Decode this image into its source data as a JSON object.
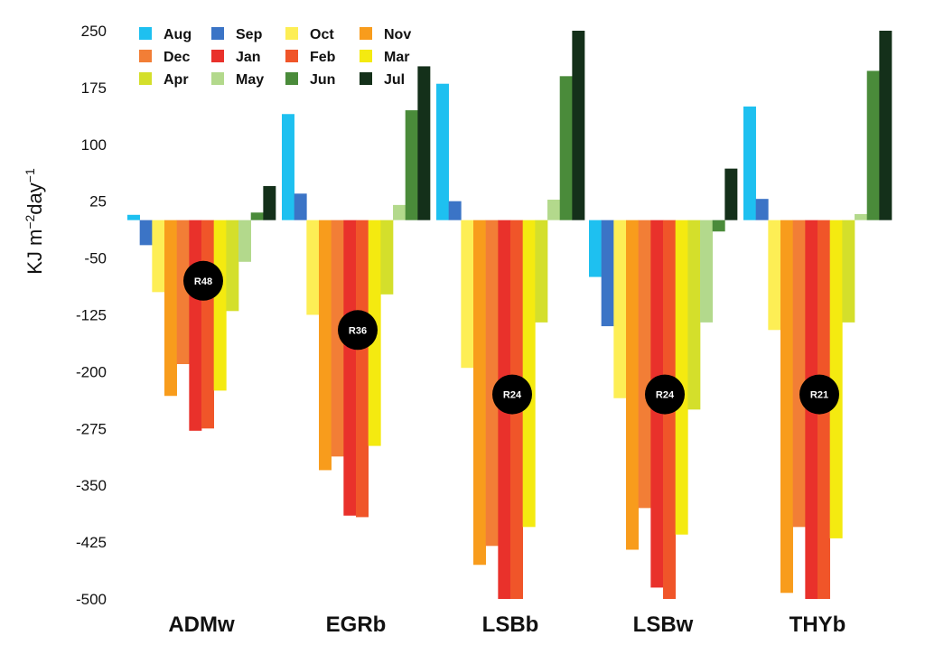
{
  "chart_data": {
    "type": "bar",
    "ylabel_parts": [
      "KJ m",
      "−2",
      "day",
      "−1"
    ],
    "ylim": [
      -500,
      250
    ],
    "yticks": [
      250,
      175,
      100,
      25,
      -50,
      -125,
      -200,
      -275,
      -350,
      -425,
      -500
    ],
    "categories": [
      "ADMw",
      "EGRb",
      "LSBb",
      "LSBw",
      "THYb"
    ],
    "series": [
      {
        "name": "Aug",
        "color": "#1ec0f0",
        "values": [
          7,
          140,
          180,
          -75,
          150
        ]
      },
      {
        "name": "Sep",
        "color": "#3b74c6",
        "values": [
          -33,
          35,
          25,
          -140,
          28
        ]
      },
      {
        "name": "Oct",
        "color": "#fdee55",
        "values": [
          -95,
          -125,
          -195,
          -235,
          -145
        ]
      },
      {
        "name": "Nov",
        "color": "#f89c1c",
        "values": [
          -232,
          -330,
          -455,
          -435,
          -492
        ]
      },
      {
        "name": "Dec",
        "color": "#f27e36",
        "values": [
          -190,
          -312,
          -430,
          -380,
          -405
        ]
      },
      {
        "name": "Jan",
        "color": "#e9312b",
        "values": [
          -278,
          -390,
          -500,
          -485,
          -500
        ]
      },
      {
        "name": "Feb",
        "color": "#f05529",
        "values": [
          -275,
          -392,
          -500,
          -500,
          -500
        ]
      },
      {
        "name": "Mar",
        "color": "#f4ea10",
        "values": [
          -225,
          -298,
          -405,
          -415,
          -420
        ]
      },
      {
        "name": "Apr",
        "color": "#d4df2b",
        "values": [
          -120,
          -98,
          -135,
          -250,
          -135
        ]
      },
      {
        "name": "May",
        "color": "#b3d98c",
        "values": [
          -55,
          20,
          27,
          -135,
          8
        ]
      },
      {
        "name": "Jun",
        "color": "#4a8b3a",
        "values": [
          10,
          145,
          190,
          -15,
          197
        ]
      },
      {
        "name": "Jul",
        "color": "#14301a",
        "values": [
          45,
          203,
          250,
          68,
          250
        ]
      }
    ],
    "legend_order": [
      "Aug",
      "Sep",
      "Oct",
      "Nov",
      "Dec",
      "Jan",
      "Feb",
      "Mar",
      "Apr",
      "May",
      "Jun",
      "Jul"
    ],
    "legend_placement": "top-left",
    "grid": false,
    "annotations": [
      {
        "category": "ADMw",
        "text": "R48",
        "y": -80
      },
      {
        "category": "EGRb",
        "text": "R36",
        "y": -145
      },
      {
        "category": "LSBb",
        "text": "R24",
        "y": -230
      },
      {
        "category": "LSBw",
        "text": "R24",
        "y": -230
      },
      {
        "category": "THYb",
        "text": "R21",
        "y": -230
      }
    ]
  }
}
